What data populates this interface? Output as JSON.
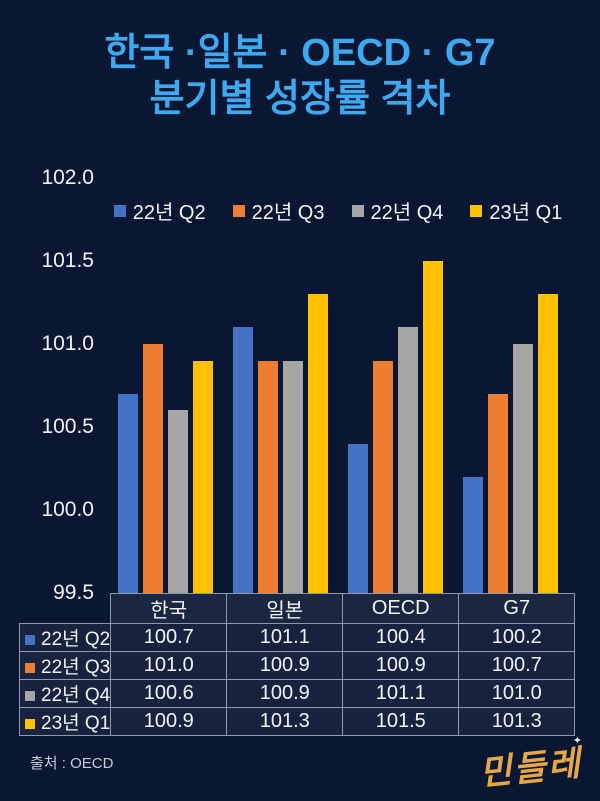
{
  "title": {
    "line1": "한국 ·일본 · OECD · G7",
    "line2": "분기별 성장률 격차"
  },
  "colors": {
    "background": "#0A1733",
    "title_blue": "#3EA8F0",
    "series": [
      "#4472C4",
      "#ED7D31",
      "#A6A6A6",
      "#FFC000"
    ],
    "table_border": "#8E97AC",
    "text": "#F2F4F8",
    "logo_gold": "#E9A644"
  },
  "chart_data": {
    "type": "bar",
    "title": "한국 ·일본 · OECD · G7 분기별 성장률 격차",
    "categories": [
      "한국",
      "일본",
      "OECD",
      "G7"
    ],
    "series": [
      {
        "name": "22년 Q2",
        "color": "#4472C4",
        "values": [
          100.7,
          101.1,
          100.4,
          100.2
        ]
      },
      {
        "name": "22년 Q3",
        "color": "#ED7D31",
        "values": [
          101.0,
          100.9,
          100.9,
          100.7
        ]
      },
      {
        "name": "22년 Q4",
        "color": "#A6A6A6",
        "values": [
          100.6,
          100.9,
          101.1,
          101.0
        ]
      },
      {
        "name": "23년 Q1",
        "color": "#FFC000",
        "values": [
          100.9,
          101.3,
          101.5,
          101.3
        ]
      }
    ],
    "ylim": [
      99.5,
      102.0
    ],
    "yticks": [
      102.0,
      101.5,
      101.0,
      100.5,
      100.0,
      99.5
    ],
    "ytick_labels": [
      "102.0",
      "101.5",
      "101.0",
      "100.5",
      "100.0",
      "99.5"
    ],
    "legend_position": "top",
    "grid": false,
    "value_decimals": 1
  },
  "footer": {
    "source": "출처 : OECD",
    "logo": "민들레",
    "sparkle": "✦"
  }
}
